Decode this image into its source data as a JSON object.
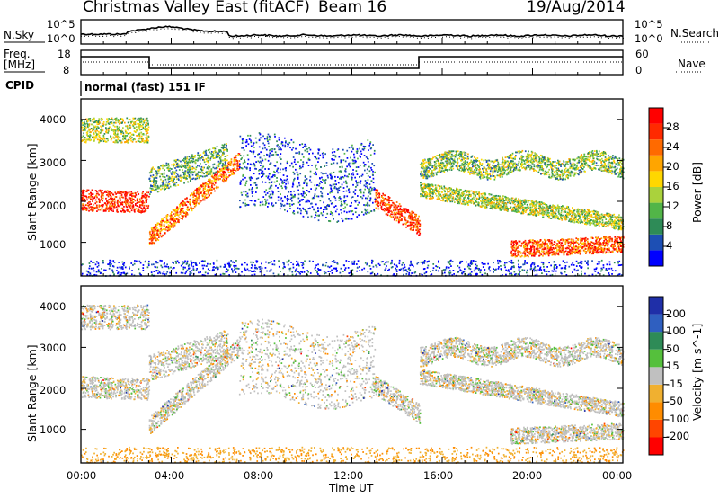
{
  "header": {
    "title_left": "Christmas Valley East (fitACF)",
    "title_beam": "Beam 16",
    "date": "19/Aug/2014"
  },
  "panels": {
    "noise": {
      "left_label": "N.Sky",
      "right_label": "N.Search",
      "left_ticks": [
        "10^5",
        "10^0"
      ],
      "right_ticks": [
        "10^5",
        "10^0"
      ]
    },
    "freq": {
      "left_label_1": "Freq.",
      "left_label_2": "[MHz]",
      "right_label": "Nave",
      "left_ticks": [
        "18",
        "8"
      ],
      "right_ticks": [
        "60",
        "0"
      ]
    },
    "cpid": {
      "label": "CPID",
      "text": "normal (fast) 151 IF"
    }
  },
  "colors": {
    "grey": "#c0c0c0"
  },
  "chart_data": [
    {
      "type": "heatmap",
      "name": "power",
      "ylabel": "Slant Range [km]",
      "ylim": [
        180,
        4500
      ],
      "yticks": [
        "1000",
        "2000",
        "3000",
        "4000"
      ],
      "colorbar": {
        "label": "Power [dB]",
        "ticks": [
          "4",
          "8",
          "12",
          "16",
          "20",
          "24",
          "28"
        ],
        "colors": [
          "#0000ff",
          "#1d4fb4",
          "#2e8b57",
          "#52b548",
          "#aad23c",
          "#ffd700",
          "#ffa500",
          "#ff6a00",
          "#ff2a00",
          "#ff0000"
        ]
      }
    },
    {
      "type": "heatmap",
      "name": "velocity",
      "ylabel": "Slant Range [km]",
      "ylim": [
        180,
        4500
      ],
      "yticks": [
        "1000",
        "2000",
        "3000",
        "4000"
      ],
      "colorbar": {
        "label": "Velocity [m s^-1]",
        "ticks": [
          "200",
          "100",
          "50",
          "15",
          "-15",
          "-50",
          "-100",
          "-200"
        ],
        "colors": [
          "#1f2fa8",
          "#2f5fc0",
          "#2e8b57",
          "#55c03c",
          "#c0c0c0",
          "#f0b030",
          "#ff8c00",
          "#ff4500",
          "#ff0000"
        ]
      }
    }
  ],
  "x_axis": {
    "label": "Time UT",
    "ticks": [
      "00:00",
      "04:00",
      "08:00",
      "12:00",
      "16:00",
      "20:00",
      "00:00"
    ]
  }
}
